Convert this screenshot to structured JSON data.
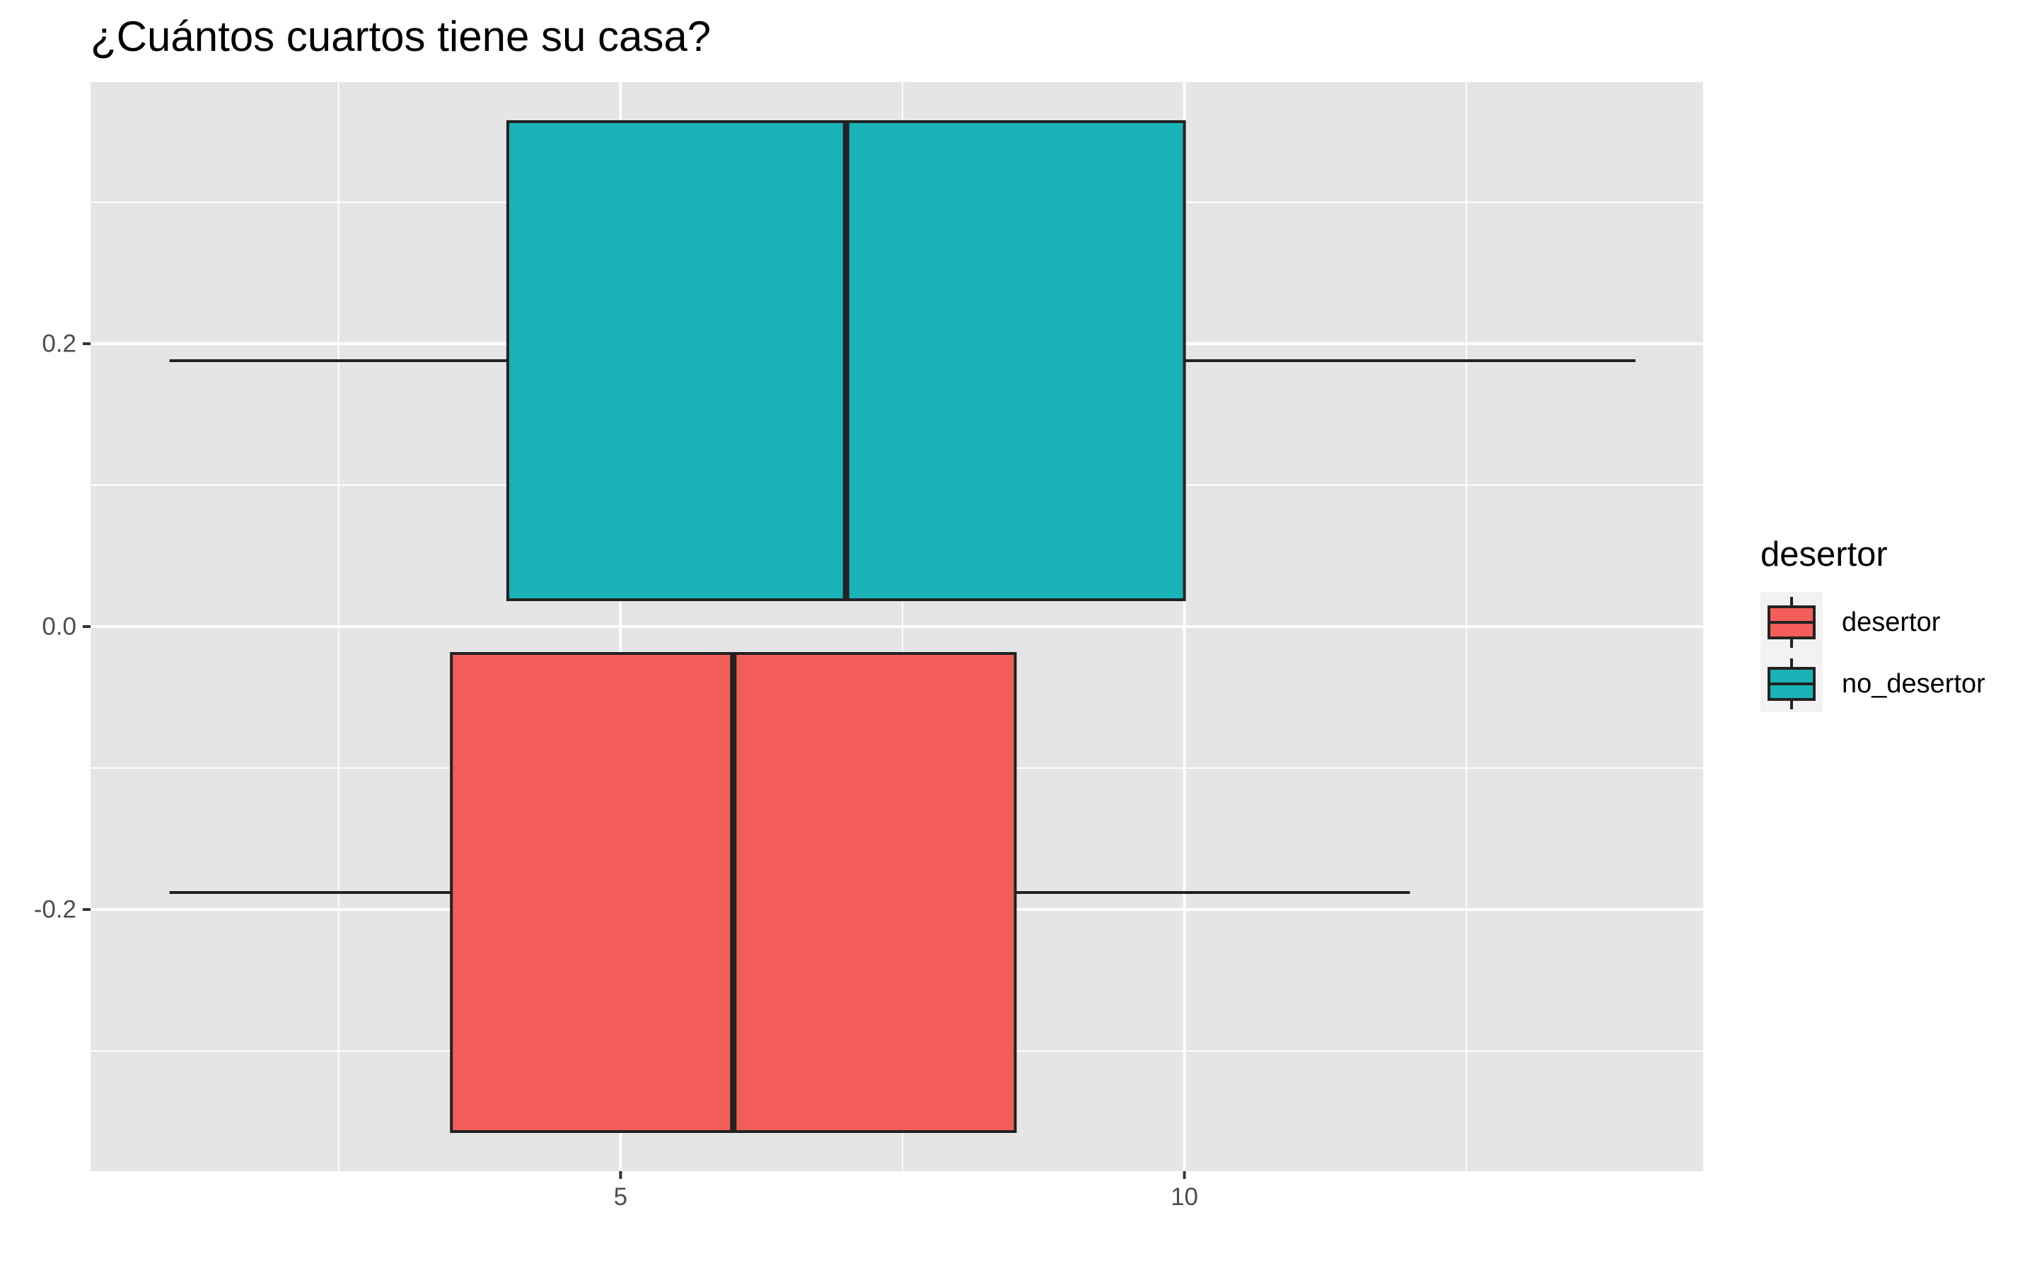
{
  "chart_data": {
    "type": "boxplot",
    "title": "¿Cuántos cuartos tiene su casa?",
    "xlabel": "",
    "ylabel": "",
    "xlim": [
      0.3,
      14.6
    ],
    "ylim": [
      -0.385,
      0.385
    ],
    "x_ticks": [
      5,
      10
    ],
    "x_tick_labels": [
      "5",
      "10"
    ],
    "x_minor_grid": [
      2.5,
      7.5,
      12.5
    ],
    "y_ticks": [
      -0.2,
      0.0,
      0.2
    ],
    "y_tick_labels": [
      "-0.2",
      "0.0",
      "0.2"
    ],
    "y_minor_grid": [
      -0.3,
      -0.1,
      0.1,
      0.3
    ],
    "grid": true,
    "legend": {
      "title": "desertor",
      "position": "right",
      "entries": [
        "desertor",
        "no_desertor"
      ]
    },
    "series": [
      {
        "name": "desertor",
        "color": "#F35E5A",
        "min": 1,
        "q1": 3.5,
        "median": 6,
        "q3": 8.5,
        "max": 12,
        "y_center": -0.188,
        "y_box": [
          -0.357,
          -0.019
        ]
      },
      {
        "name": "no_desertor",
        "color": "#19B2B6",
        "min": 1,
        "q1": 4,
        "median": 7,
        "q3": 10,
        "max": 14,
        "y_center": 0.188,
        "y_box": [
          0.019,
          0.357
        ]
      }
    ],
    "colors": {
      "panel_background": "#E5E5E5",
      "grid_line": "#FFFFFF",
      "outline": "#222222",
      "tick_text": "#4D4D4D"
    }
  }
}
